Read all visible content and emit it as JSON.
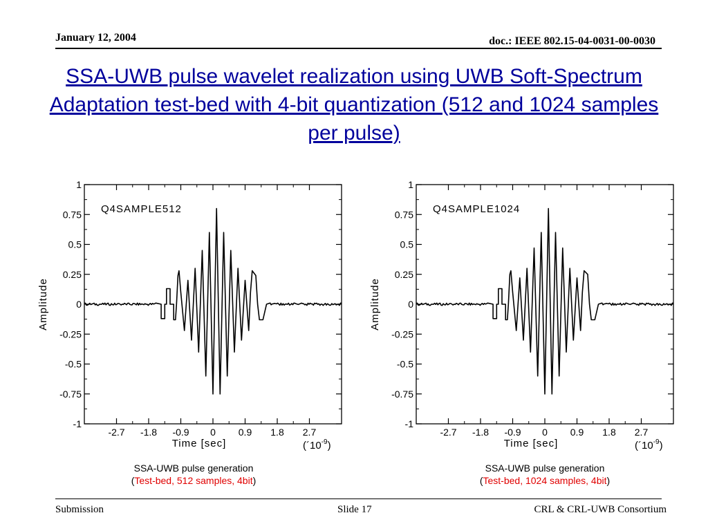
{
  "header": {
    "date": "January 12, 2004",
    "doc": "doc.: IEEE 802.15-04-0031-00-0030"
  },
  "title": "SSA-UWB pulse wavelet realization using UWB Soft-Spectrum Adaptation test-bed with 4-bit quantization (512 and 1024 samples per pulse)",
  "colors": {
    "title": "#00009c",
    "caption_highlight": "#e00000",
    "trace": "#000000"
  },
  "chart_data": [
    {
      "type": "line",
      "title": "Q4SAMPLE512",
      "xlabel": "Time [sec]",
      "x_multiplier": "(´10-9)",
      "x_multiplier_base": "(´10",
      "x_multiplier_exp": "-9",
      "x_multiplier_close": ")",
      "ylabel": "Amplitude",
      "xlim": [
        -3.6,
        3.6
      ],
      "ylim": [
        -1,
        1
      ],
      "xticks": [
        -2.7,
        -1.8,
        -0.9,
        0,
        0.9,
        1.8,
        2.7
      ],
      "xtick_labels": [
        "-2.7",
        "-1.8",
        "-0.9",
        "0",
        "0.9",
        "1.8",
        "2.7"
      ],
      "yticks": [
        1,
        0.75,
        0.5,
        0.25,
        0,
        -0.25,
        -0.5,
        -0.75,
        -1
      ],
      "ytick_labels": [
        "1",
        "0.75",
        "0.5",
        "0.25",
        "0",
        "-0.25",
        "-0.5",
        "-0.75",
        "-1"
      ],
      "grid": false,
      "series": [
        {
          "x": [
            -3.6,
            -2.6,
            -1.6,
            -1.45,
            -1.45,
            -1.35,
            -1.35,
            -1.3,
            -1.3,
            -1.2,
            -1.2,
            -1.1,
            -1.1,
            -1.05,
            -1.02,
            -0.98,
            -0.95,
            -0.9,
            -0.8,
            -0.7,
            -0.6,
            -0.5,
            -0.4,
            -0.3,
            -0.2,
            -0.1,
            0,
            0.1,
            0.2,
            0.3,
            0.4,
            0.5,
            0.6,
            0.7,
            0.8,
            0.9,
            1.0,
            1.05,
            1.1,
            1.2,
            1.25,
            1.3,
            1.4,
            1.5,
            1.6,
            2.6,
            3.6
          ],
          "y": [
            0.01,
            0.0,
            0.01,
            0.0,
            -0.12,
            -0.12,
            0.0,
            0.0,
            0.13,
            0.13,
            0.0,
            0.0,
            -0.13,
            -0.13,
            0.0,
            0.24,
            0.28,
            0.1,
            -0.22,
            0.2,
            -0.3,
            0.3,
            -0.4,
            0.45,
            -0.6,
            0.6,
            -0.75,
            0.8,
            -0.75,
            0.6,
            -0.6,
            0.45,
            -0.4,
            0.3,
            -0.3,
            0.2,
            -0.22,
            0.1,
            0.28,
            0.24,
            0.0,
            -0.13,
            -0.13,
            0.0,
            0.01,
            0.0,
            0.01
          ]
        }
      ]
    },
    {
      "type": "line",
      "title": "Q4SAMPLE1024",
      "xlabel": "Time [sec]",
      "x_multiplier": "(´10-9)",
      "x_multiplier_base": "(´10",
      "x_multiplier_exp": "-9",
      "x_multiplier_close": ")",
      "ylabel": "Amplitude",
      "xlim": [
        -3.6,
        3.6
      ],
      "ylim": [
        -1,
        1
      ],
      "xticks": [
        -2.7,
        -1.8,
        -0.9,
        0,
        0.9,
        1.8,
        2.7
      ],
      "xtick_labels": [
        "-2.7",
        "-1.8",
        "-0.9",
        "0",
        "0.9",
        "1.8",
        "2.7"
      ],
      "yticks": [
        1,
        0.75,
        0.5,
        0.25,
        0,
        -0.25,
        -0.5,
        -0.75,
        -1
      ],
      "ytick_labels": [
        "1",
        "0.75",
        "0.5",
        "0.25",
        "0",
        "-0.25",
        "-0.5",
        "-0.75",
        "-1"
      ],
      "grid": false,
      "series": [
        {
          "x": [
            -3.6,
            -2.6,
            -1.6,
            -1.45,
            -1.45,
            -1.35,
            -1.35,
            -1.3,
            -1.3,
            -1.2,
            -1.2,
            -1.1,
            -1.1,
            -1.05,
            -1.02,
            -0.98,
            -0.95,
            -0.9,
            -0.8,
            -0.7,
            -0.6,
            -0.5,
            -0.4,
            -0.3,
            -0.2,
            -0.1,
            0,
            0.1,
            0.2,
            0.3,
            0.4,
            0.5,
            0.6,
            0.7,
            0.8,
            0.9,
            1.0,
            1.05,
            1.1,
            1.2,
            1.25,
            1.3,
            1.4,
            1.5,
            1.6,
            2.6,
            3.6
          ],
          "y": [
            0.01,
            0.0,
            0.01,
            0.0,
            -0.12,
            -0.12,
            0.0,
            0.0,
            0.13,
            0.13,
            0.0,
            0.0,
            -0.13,
            -0.13,
            0.0,
            0.25,
            0.28,
            0.1,
            -0.22,
            0.22,
            -0.3,
            0.3,
            -0.4,
            0.47,
            -0.6,
            0.6,
            -0.75,
            0.8,
            -0.75,
            0.6,
            -0.6,
            0.47,
            -0.4,
            0.3,
            -0.3,
            0.22,
            -0.22,
            0.1,
            0.28,
            0.25,
            0.0,
            -0.13,
            -0.13,
            0.0,
            0.01,
            0.0,
            0.01
          ]
        }
      ]
    }
  ],
  "captions": [
    {
      "line1": "SSA-UWB pulse generation",
      "open": "(",
      "detail": "Test-bed, 512 samples, 4bit",
      "close": ")"
    },
    {
      "line1": "SSA-UWB pulse generation",
      "open": "(",
      "detail": "Test-bed, 1024 samples, 4bit",
      "close": ")"
    }
  ],
  "footer": {
    "left": "Submission",
    "center": "Slide 17",
    "right": "CRL & CRL-UWB Consortium"
  }
}
